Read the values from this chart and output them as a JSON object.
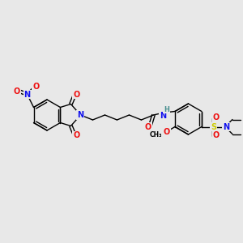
{
  "bg_color": "#e8e8e8",
  "atom_colors": {
    "C": "#000000",
    "N": "#1010ee",
    "O": "#ee1010",
    "S": "#cccc00",
    "H": "#4a9090"
  },
  "bond_color": "#000000",
  "figsize": [
    3.0,
    3.0
  ],
  "dpi": 100
}
